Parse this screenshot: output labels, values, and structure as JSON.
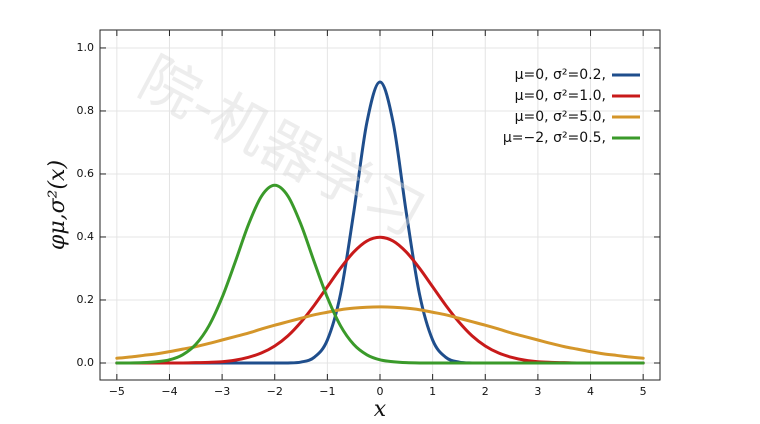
{
  "chart_data": {
    "type": "line",
    "xlabel": "x",
    "ylabel": "φμ,σ²(x)",
    "watermark": "院-机器学习",
    "x": [
      -5,
      -4.75,
      -4.5,
      -4.25,
      -4,
      -3.75,
      -3.5,
      -3.25,
      -3,
      -2.75,
      -2.5,
      -2.25,
      -2,
      -1.75,
      -1.5,
      -1.25,
      -1,
      -0.75,
      -0.5,
      -0.25,
      0,
      0.25,
      0.5,
      0.75,
      1,
      1.25,
      1.5,
      1.75,
      2,
      2.25,
      2.5,
      2.75,
      3,
      3.25,
      3.5,
      3.75,
      4,
      4.25,
      4.5,
      4.75,
      5
    ],
    "series": [
      {
        "name": "μ=0,   σ²=0.2,",
        "color": "#1f4e8c",
        "values": [
          0,
          0,
          0,
          0,
          0,
          0,
          0,
          0,
          0,
          0,
          0,
          0,
          0,
          0,
          0.003,
          0.018,
          0.073,
          0.219,
          0.477,
          0.763,
          0.892,
          0.763,
          0.477,
          0.219,
          0.073,
          0.018,
          0.003,
          0,
          0,
          0,
          0,
          0,
          0,
          0,
          0,
          0,
          0,
          0,
          0,
          0,
          0
        ]
      },
      {
        "name": "μ=0,   σ²=1.0,",
        "color": "#c81a1a",
        "values": [
          0,
          0,
          0,
          0,
          0,
          0,
          0.001,
          0.002,
          0.004,
          0.009,
          0.018,
          0.032,
          0.054,
          0.086,
          0.13,
          0.183,
          0.242,
          0.301,
          0.352,
          0.387,
          0.399,
          0.387,
          0.352,
          0.301,
          0.242,
          0.183,
          0.13,
          0.086,
          0.054,
          0.032,
          0.018,
          0.009,
          0.004,
          0.002,
          0.001,
          0,
          0,
          0,
          0,
          0,
          0
        ]
      },
      {
        "name": "μ=0,   σ²=5.0,",
        "color": "#d4962a",
        "values": [
          0.015,
          0.019,
          0.024,
          0.029,
          0.036,
          0.044,
          0.052,
          0.062,
          0.073,
          0.084,
          0.095,
          0.108,
          0.12,
          0.131,
          0.142,
          0.153,
          0.161,
          0.169,
          0.174,
          0.177,
          0.178,
          0.177,
          0.174,
          0.169,
          0.161,
          0.153,
          0.142,
          0.131,
          0.12,
          0.108,
          0.095,
          0.084,
          0.073,
          0.062,
          0.052,
          0.044,
          0.036,
          0.029,
          0.024,
          0.019,
          0.015
        ]
      },
      {
        "name": "μ=−2, σ²=0.5,",
        "color": "#3a9a2a",
        "values": [
          0,
          0,
          0.001,
          0.004,
          0.01,
          0.026,
          0.059,
          0.118,
          0.208,
          0.321,
          0.439,
          0.53,
          0.564,
          0.53,
          0.439,
          0.321,
          0.208,
          0.118,
          0.059,
          0.026,
          0.01,
          0.004,
          0.001,
          0,
          0,
          0,
          0,
          0,
          0,
          0,
          0,
          0,
          0,
          0,
          0,
          0,
          0,
          0,
          0,
          0,
          0
        ]
      }
    ],
    "xlim": [
      -5.32,
      5.32
    ],
    "ylim": [
      -0.054,
      1.057
    ],
    "xticks": [
      {
        "value": -5,
        "label": "−5"
      },
      {
        "value": -4,
        "label": "−4"
      },
      {
        "value": -3,
        "label": "−3"
      },
      {
        "value": -2,
        "label": "−2"
      },
      {
        "value": -1,
        "label": "−1"
      },
      0,
      1,
      2,
      3,
      4,
      5
    ],
    "yticks": [
      {
        "value": 0,
        "label": "0.0"
      },
      0.2,
      0.4,
      0.6,
      0.8,
      {
        "value": 1,
        "label": "1.0"
      }
    ],
    "grid": true,
    "legend": "upper right"
  }
}
